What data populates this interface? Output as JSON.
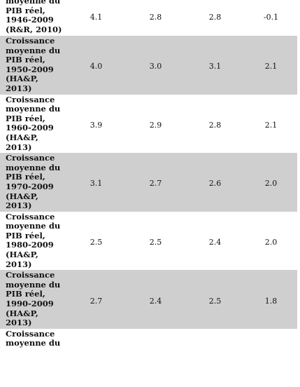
{
  "rows": [
    {
      "label": "moyenne du\nPIB réel,\n1946-2009\n(R&R, 2010)",
      "values": [
        "4.1",
        "2.8",
        "2.8",
        "-0.1"
      ],
      "shaded": false
    },
    {
      "label": "Croissance\nmoyenne du\nPIB réel,\n1950-2009\n(HA&P,\n2013)",
      "values": [
        "4.0",
        "3.0",
        "3.1",
        "2.1"
      ],
      "shaded": true
    },
    {
      "label": "Croissance\nmoyenne du\nPIB réel,\n1960-2009\n(HA&P,\n2013)",
      "values": [
        "3.9",
        "2.9",
        "2.8",
        "2.1"
      ],
      "shaded": false
    },
    {
      "label": "Croissance\nmoyenne du\nPIB réel,\n1970-2009\n(HA&P,\n2013)",
      "values": [
        "3.1",
        "2.7",
        "2.6",
        "2.0"
      ],
      "shaded": true
    },
    {
      "label": "Croissance\nmoyenne du\nPIB réel,\n1980-2009\n(HA&P,\n2013)",
      "values": [
        "2.5",
        "2.5",
        "2.4",
        "2.0"
      ],
      "shaded": false
    },
    {
      "label": "Croissance\nmoyenne du\nPIB réel,\n1990-2009\n(HA&P,\n2013)",
      "values": [
        "2.7",
        "2.4",
        "2.5",
        "1.8"
      ],
      "shaded": true
    },
    {
      "label": "Croissance\nmoyenne du",
      "values": [
        "",
        "",
        "",
        ""
      ],
      "shaded": false
    }
  ]
}
